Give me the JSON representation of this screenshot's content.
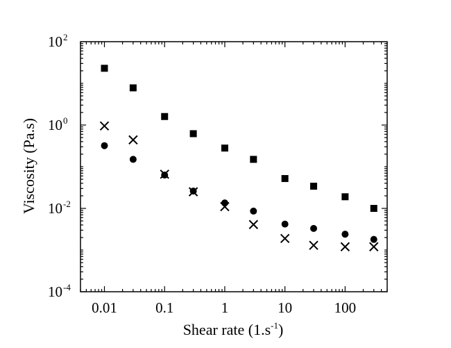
{
  "chart_data": {
    "type": "scatter",
    "title": "",
    "xlabel": "Shear rate (1.s-1)",
    "xlabel_base": "Shear rate (1.s",
    "xlabel_sup": "-1",
    "xlabel_tail": ")",
    "ylabel": "Viscosity (Pa.s)",
    "x_scale": "log",
    "y_scale": "log",
    "xlim": [
      0.004,
      500
    ],
    "ylim": [
      0.0001,
      100
    ],
    "x_ticks": [
      {
        "value": 0.01,
        "label": "0.01"
      },
      {
        "value": 0.1,
        "label": "0.1"
      },
      {
        "value": 1,
        "label": "1"
      },
      {
        "value": 10,
        "label": "10"
      },
      {
        "value": 100,
        "label": "100"
      }
    ],
    "y_ticks": [
      {
        "value": 100,
        "base": "10",
        "exp": "2"
      },
      {
        "value": 1,
        "base": "10",
        "exp": "0"
      },
      {
        "value": 0.01,
        "base": "10",
        "exp": "-2"
      },
      {
        "value": 0.0001,
        "base": "10",
        "exp": "-4"
      }
    ],
    "grid": false,
    "legend": "none",
    "series": [
      {
        "marker": "square",
        "x": [
          0.01,
          0.03,
          0.1,
          0.3,
          1,
          3,
          10,
          30,
          100,
          300
        ],
        "y": [
          23,
          7.8,
          1.6,
          0.62,
          0.28,
          0.15,
          0.052,
          0.034,
          0.019,
          0.01
        ]
      },
      {
        "marker": "circle",
        "x": [
          0.01,
          0.03,
          0.1,
          0.3,
          1,
          3,
          10,
          30,
          100,
          300
        ],
        "y": [
          0.32,
          0.15,
          0.063,
          0.026,
          0.0135,
          0.0086,
          0.0042,
          0.0033,
          0.0024,
          0.0018
        ]
      },
      {
        "marker": "x",
        "x": [
          0.01,
          0.03,
          0.1,
          0.3,
          1,
          3,
          10,
          30,
          100,
          300
        ],
        "y": [
          0.95,
          0.44,
          0.066,
          0.025,
          0.011,
          0.0041,
          0.0019,
          0.0013,
          0.0012,
          0.0012
        ]
      }
    ]
  }
}
